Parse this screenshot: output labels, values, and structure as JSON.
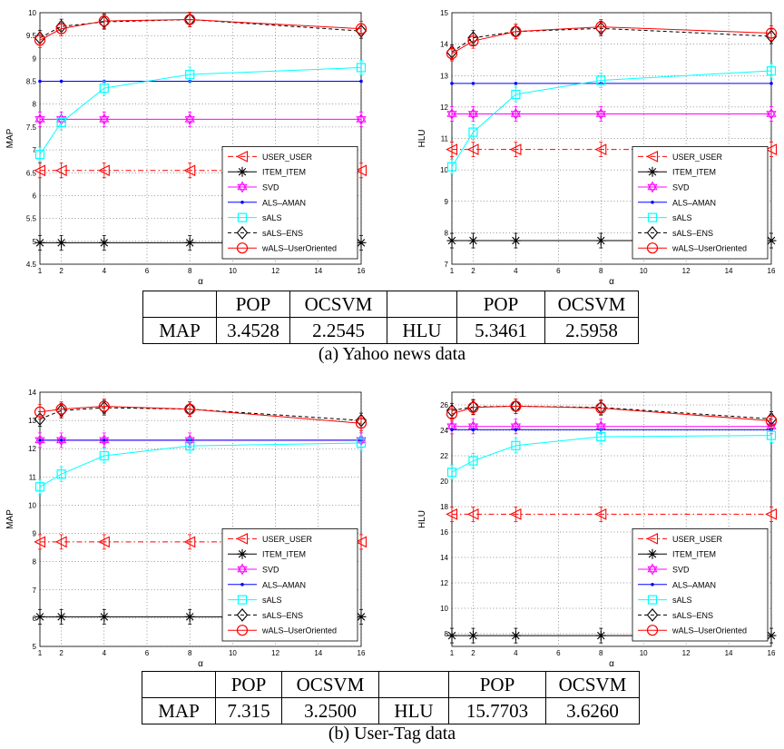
{
  "chart_data": [
    {
      "type": "line",
      "id": "p1",
      "xlabel": "α",
      "ylabel": "MAP",
      "x": [
        1,
        2,
        4,
        8,
        16
      ],
      "xticks": [
        1,
        2,
        4,
        6,
        8,
        10,
        12,
        14,
        16
      ],
      "xlim": [
        1,
        16
      ],
      "ylim": [
        4.5,
        10
      ],
      "yticks": [
        4.5,
        5,
        5.5,
        6,
        6.5,
        7,
        7.5,
        8,
        8.5,
        9,
        9.5,
        10
      ],
      "ytick_labels": [
        "4.5",
        "5",
        "5.5",
        "6",
        "6.5",
        "7",
        "7.5",
        "8",
        "8.5",
        "9",
        "9.5",
        "10"
      ],
      "legend_position": "lower-right",
      "series": [
        {
          "name": "USER_USER",
          "values": [
            6.55,
            6.55,
            6.55,
            6.55,
            6.55
          ],
          "color": "#ff0000",
          "dash": "6,3,1.5,3",
          "marker": "triangle-left"
        },
        {
          "name": "ITEM_ITEM",
          "values": [
            4.97,
            4.97,
            4.97,
            4.97,
            4.97
          ],
          "color": "#000000",
          "dash": "",
          "marker": "star"
        },
        {
          "name": "SVD",
          "values": [
            7.67,
            7.67,
            7.67,
            7.67,
            7.67
          ],
          "color": "#ff00ff",
          "dash": "",
          "marker": "hexagram"
        },
        {
          "name": "ALS–AMAN",
          "values": [
            8.5,
            8.5,
            8.5,
            8.5,
            8.5
          ],
          "color": "#0000ff",
          "dash": "",
          "marker": "dot"
        },
        {
          "name": "sALS",
          "values": [
            6.9,
            7.6,
            8.35,
            8.65,
            8.8
          ],
          "color": "#00ffff",
          "dash": "",
          "marker": "square"
        },
        {
          "name": "sALS–ENS",
          "values": [
            9.45,
            9.7,
            9.8,
            9.85,
            9.6
          ],
          "color": "#000000",
          "dash": "4,3",
          "marker": "diamond"
        },
        {
          "name": "wALS–UserOriented",
          "values": [
            9.4,
            9.65,
            9.82,
            9.85,
            9.65
          ],
          "color": "#ff0000",
          "dash": "",
          "marker": "circle"
        }
      ]
    },
    {
      "type": "line",
      "id": "p2",
      "xlabel": "α",
      "ylabel": "HLU",
      "x": [
        1,
        2,
        4,
        8,
        16
      ],
      "xticks": [
        1,
        2,
        4,
        6,
        8,
        10,
        12,
        14,
        16
      ],
      "xlim": [
        1,
        16
      ],
      "ylim": [
        7,
        15
      ],
      "yticks": [
        7,
        8,
        9,
        10,
        11,
        12,
        13,
        14,
        15
      ],
      "ytick_labels": [
        "7",
        "8",
        "9",
        "10",
        "11",
        "12",
        "13",
        "14",
        "15"
      ],
      "legend_position": "lower-right",
      "series": [
        {
          "name": "USER_USER",
          "values": [
            10.65,
            10.65,
            10.65,
            10.65,
            10.65
          ],
          "color": "#ff0000",
          "dash": "6,3,1.5,3",
          "marker": "triangle-left"
        },
        {
          "name": "ITEM_ITEM",
          "values": [
            7.75,
            7.75,
            7.75,
            7.75,
            7.75
          ],
          "color": "#000000",
          "dash": "",
          "marker": "star"
        },
        {
          "name": "SVD",
          "values": [
            11.78,
            11.78,
            11.78,
            11.78,
            11.78
          ],
          "color": "#ff00ff",
          "dash": "",
          "marker": "hexagram"
        },
        {
          "name": "ALS–AMAN",
          "values": [
            12.75,
            12.75,
            12.75,
            12.75,
            12.75
          ],
          "color": "#0000ff",
          "dash": "",
          "marker": "dot"
        },
        {
          "name": "sALS",
          "values": [
            10.1,
            11.2,
            12.4,
            12.85,
            13.15
          ],
          "color": "#00ffff",
          "dash": "",
          "marker": "square"
        },
        {
          "name": "sALS–ENS",
          "values": [
            13.75,
            14.2,
            14.4,
            14.5,
            14.25
          ],
          "color": "#000000",
          "dash": "4,3",
          "marker": "diamond"
        },
        {
          "name": "wALS–UserOriented",
          "values": [
            13.7,
            14.1,
            14.4,
            14.55,
            14.35
          ],
          "color": "#ff0000",
          "dash": "",
          "marker": "circle"
        }
      ]
    },
    {
      "type": "line",
      "id": "p3",
      "xlabel": "α",
      "ylabel": "MAP",
      "x": [
        1,
        2,
        4,
        8,
        16
      ],
      "xticks": [
        1,
        2,
        4,
        6,
        8,
        10,
        12,
        14,
        16
      ],
      "xlim": [
        1,
        16
      ],
      "ylim": [
        5,
        14
      ],
      "yticks": [
        5,
        6,
        7,
        8,
        9,
        10,
        11,
        12,
        13,
        14
      ],
      "ytick_labels": [
        "5",
        "6",
        "7",
        "8",
        "9",
        "10",
        "11",
        "12",
        "13",
        "14"
      ],
      "legend_position": "lower-right",
      "series": [
        {
          "name": "USER_USER",
          "values": [
            8.7,
            8.7,
            8.7,
            8.7,
            8.7
          ],
          "color": "#ff0000",
          "dash": "6,3,1.5,3",
          "marker": "triangle-left"
        },
        {
          "name": "ITEM_ITEM",
          "values": [
            6.05,
            6.05,
            6.05,
            6.05,
            6.05
          ],
          "color": "#000000",
          "dash": "",
          "marker": "star"
        },
        {
          "name": "SVD",
          "values": [
            12.3,
            12.3,
            12.3,
            12.3,
            12.3
          ],
          "color": "#ff00ff",
          "dash": "",
          "marker": "hexagram"
        },
        {
          "name": "ALS–AMAN",
          "values": [
            12.3,
            12.3,
            12.3,
            12.3,
            12.3
          ],
          "color": "#0000ff",
          "dash": "",
          "marker": "dot"
        },
        {
          "name": "sALS",
          "values": [
            10.65,
            11.1,
            11.75,
            12.1,
            12.2
          ],
          "color": "#00ffff",
          "dash": "",
          "marker": "square"
        },
        {
          "name": "sALS–ENS",
          "values": [
            13.05,
            13.35,
            13.45,
            13.4,
            13.0
          ],
          "color": "#000000",
          "dash": "4,3",
          "marker": "diamond"
        },
        {
          "name": "wALS–UserOriented",
          "values": [
            13.3,
            13.4,
            13.5,
            13.4,
            12.9
          ],
          "color": "#ff0000",
          "dash": "",
          "marker": "circle"
        }
      ]
    },
    {
      "type": "line",
      "id": "p4",
      "xlabel": "α",
      "ylabel": "HLU",
      "x": [
        1,
        2,
        4,
        8,
        16
      ],
      "xticks": [
        1,
        2,
        4,
        6,
        8,
        10,
        12,
        14,
        16
      ],
      "xlim": [
        1,
        16
      ],
      "ylim": [
        7,
        27
      ],
      "yticks": [
        8,
        10,
        12,
        14,
        16,
        18,
        20,
        22,
        24,
        26
      ],
      "ytick_labels": [
        "8",
        "10",
        "12",
        "14",
        "16",
        "18",
        "20",
        "22",
        "24",
        "26"
      ],
      "legend_position": "lower-right",
      "series": [
        {
          "name": "USER_USER",
          "values": [
            17.4,
            17.4,
            17.4,
            17.4,
            17.4
          ],
          "color": "#ff0000",
          "dash": "6,3,1.5,3",
          "marker": "triangle-left"
        },
        {
          "name": "ITEM_ITEM",
          "values": [
            7.85,
            7.85,
            7.85,
            7.85,
            7.85
          ],
          "color": "#000000",
          "dash": "",
          "marker": "star"
        },
        {
          "name": "SVD",
          "values": [
            24.3,
            24.3,
            24.3,
            24.3,
            24.3
          ],
          "color": "#ff00ff",
          "dash": "",
          "marker": "hexagram"
        },
        {
          "name": "ALS–AMAN",
          "values": [
            24.05,
            24.05,
            24.05,
            24.05,
            24.05
          ],
          "color": "#0000ff",
          "dash": "",
          "marker": "dot"
        },
        {
          "name": "sALS",
          "values": [
            20.7,
            21.6,
            22.8,
            23.5,
            23.6
          ],
          "color": "#00ffff",
          "dash": "",
          "marker": "square"
        },
        {
          "name": "sALS–ENS",
          "values": [
            25.55,
            25.85,
            25.9,
            25.8,
            24.9
          ],
          "color": "#000000",
          "dash": "4,3",
          "marker": "diamond"
        },
        {
          "name": "wALS–UserOriented",
          "values": [
            25.3,
            25.8,
            25.9,
            25.75,
            24.75
          ],
          "color": "#ff0000",
          "dash": "",
          "marker": "circle"
        }
      ]
    }
  ],
  "tables": {
    "yahoo": {
      "header": [
        "",
        "POP",
        "OCSVM",
        "",
        "POP",
        "OCSVM"
      ],
      "row": [
        "MAP",
        "3.4528",
        "2.2545",
        "HLU",
        "5.3461",
        "2.5958"
      ]
    },
    "usertag": {
      "header": [
        "",
        "POP",
        "OCSVM",
        "",
        "POP",
        "OCSVM"
      ],
      "row": [
        "MAP",
        "7.315",
        "3.2500",
        "HLU",
        "15.7703",
        "3.6260"
      ]
    }
  },
  "captions": {
    "a": "(a) Yahoo news data",
    "b": "(b) User-Tag data"
  }
}
